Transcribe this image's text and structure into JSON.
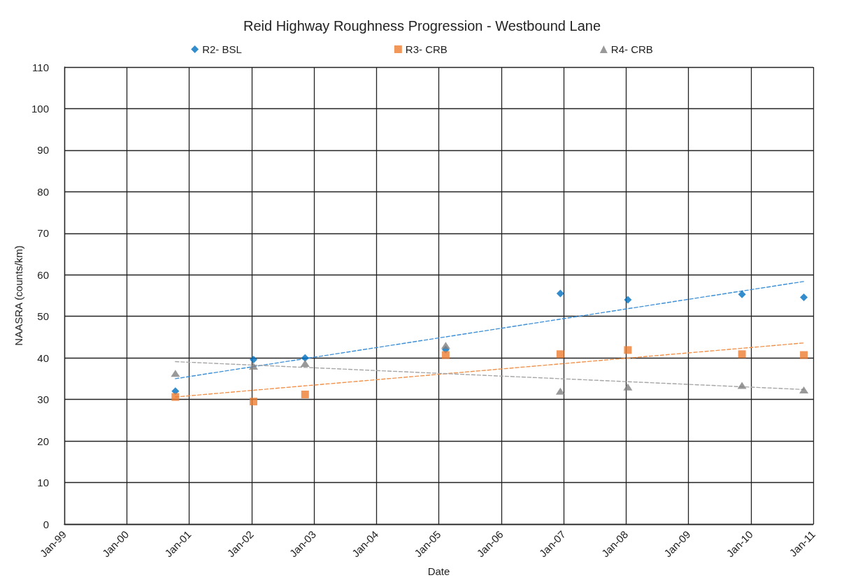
{
  "chart_data": {
    "type": "scatter",
    "title": "Reid Highway Roughness Progression - Westbound Lane",
    "xlabel": "Date",
    "ylabel": "NAASRA (counts/km)",
    "x": [
      "2000-10-12",
      "2002-01-12",
      "2002-11-10",
      "2005-02-10",
      "2006-12-13",
      "2008-01-12",
      "2009-11-10",
      "2010-11-07"
    ],
    "series": [
      {
        "name": "R2- BSL",
        "color": "#0070c0",
        "marker": "diamond",
        "values": [
          32.0,
          39.6,
          40.0,
          42.0,
          55.5,
          54.0,
          55.3,
          54.6
        ]
      },
      {
        "name": "R3- CRB",
        "color": "#ed7d31",
        "marker": "square",
        "values": [
          30.6,
          29.5,
          31.2,
          40.7,
          40.9,
          41.9,
          40.9,
          40.7
        ]
      },
      {
        "name": "R4- CRB",
        "color": "#7f7f7f",
        "marker": "triangle",
        "values": [
          36.3,
          38.0,
          38.7,
          43.0,
          32.0,
          33.0,
          33.4,
          32.3
        ]
      },
      {
        "type": "line",
        "color": "#3d8fd6",
        "marker": "none",
        "line_style": "dashed",
        "x": [
          "2000-10-12",
          "2010-11-07"
        ],
        "values": [
          35.0,
          58.4
        ]
      },
      {
        "type": "line",
        "color": "#f0924c",
        "marker": "none",
        "line_style": "dashed",
        "x": [
          "2000-10-12",
          "2010-11-07"
        ],
        "values": [
          30.6,
          43.6
        ]
      },
      {
        "type": "line",
        "color": "#a6a6a6",
        "marker": "none",
        "line_style": "dashed",
        "x": [
          "2000-10-12",
          "2010-11-07"
        ],
        "values": [
          39.1,
          32.4
        ]
      }
    ],
    "xlim": [
      "1999-01-01",
      "2011-01-01"
    ],
    "xticks": [
      {
        "value": "1999-01",
        "label": "Jan-99"
      },
      {
        "value": "2000-01",
        "label": "Jan-00"
      },
      {
        "value": "2001-01",
        "label": "Jan-01"
      },
      {
        "value": "2002-01",
        "label": "Jan-02"
      },
      {
        "value": "2003-01",
        "label": "Jan-03"
      },
      {
        "value": "2004-01",
        "label": "Jan-04"
      },
      {
        "value": "2005-01",
        "label": "Jan-05"
      },
      {
        "value": "2006-01",
        "label": "Jan-06"
      },
      {
        "value": "2007-01",
        "label": "Jan-07"
      },
      {
        "value": "2008-01",
        "label": "Jan-08"
      },
      {
        "value": "2009-01",
        "label": "Jan-09"
      },
      {
        "value": "2010-01",
        "label": "Jan-10"
      },
      {
        "value": "2011-01",
        "label": "Jan-11"
      }
    ],
    "ylim": [
      0,
      110
    ],
    "yticks": [
      0,
      10,
      20,
      30,
      40,
      50,
      60,
      70,
      80,
      90,
      100,
      110
    ],
    "grid": true,
    "legend": "top"
  }
}
